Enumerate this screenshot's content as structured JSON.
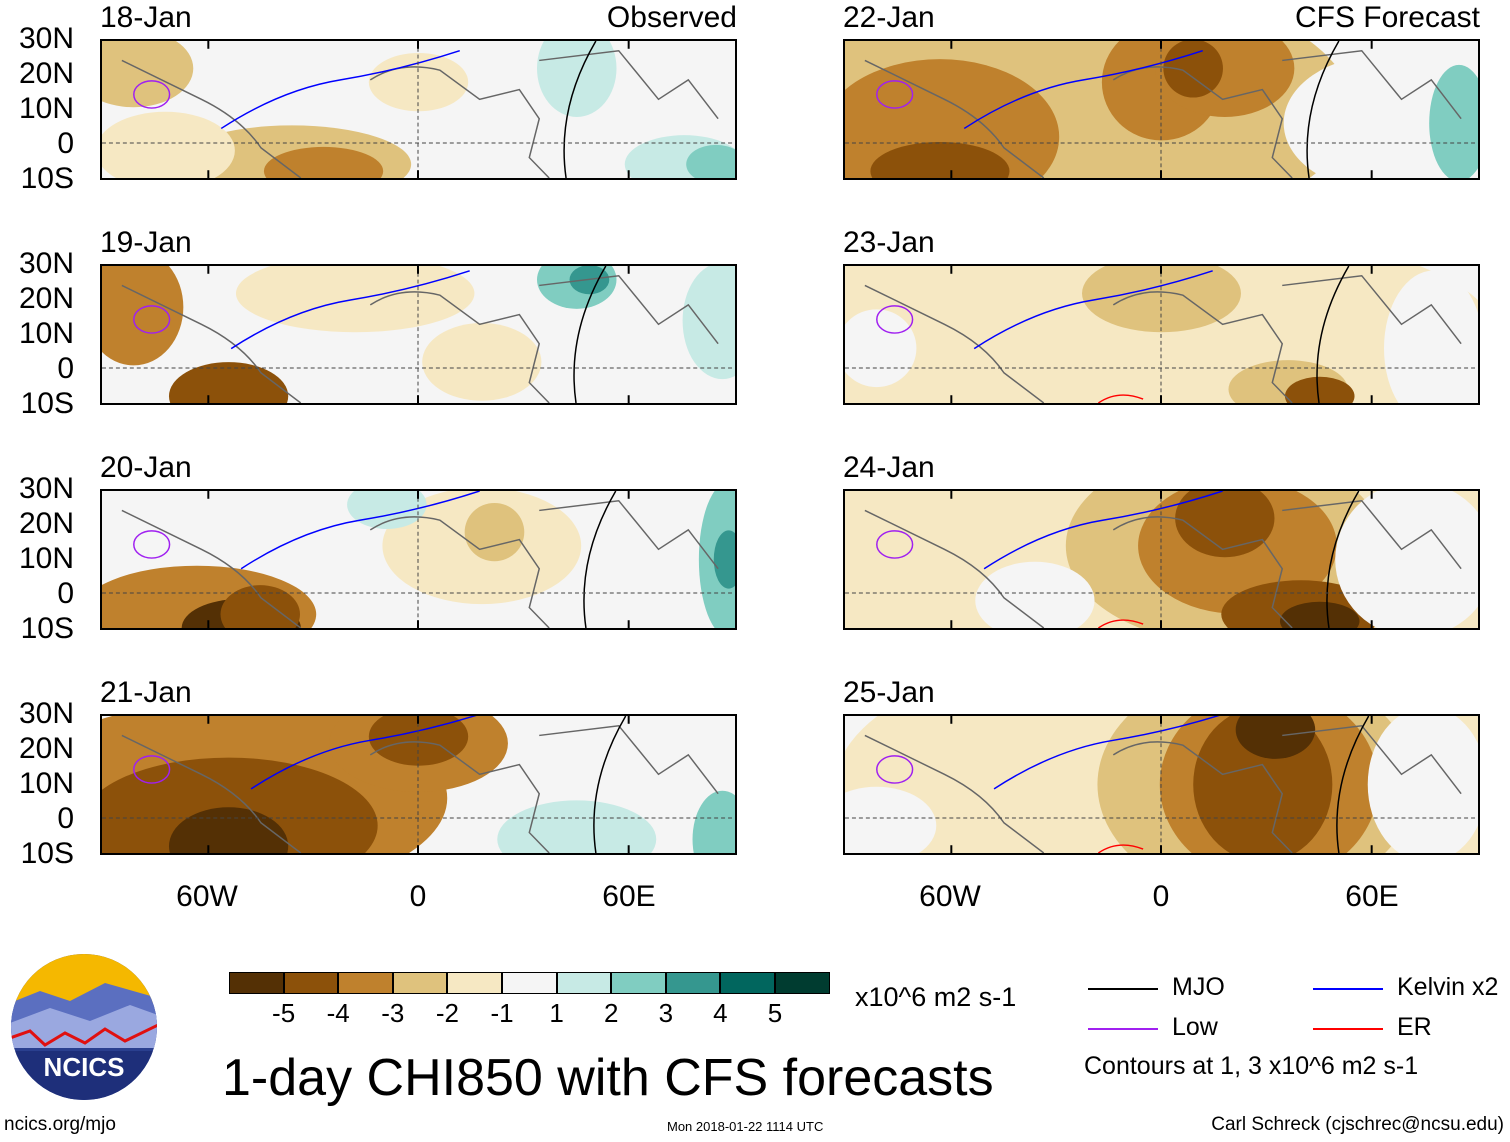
{
  "panels": {
    "left": [
      {
        "date": "18-Jan",
        "label": "Observed"
      },
      {
        "date": "19-Jan"
      },
      {
        "date": "20-Jan"
      },
      {
        "date": "21-Jan"
      }
    ],
    "right": [
      {
        "date": "22-Jan",
        "label": "CFS Forecast"
      },
      {
        "date": "23-Jan"
      },
      {
        "date": "24-Jan"
      },
      {
        "date": "25-Jan"
      }
    ]
  },
  "axes": {
    "lat_labels": [
      "30N",
      "20N",
      "10N",
      "0",
      "10S"
    ],
    "lon_labels": [
      "60W",
      "0",
      "60E"
    ]
  },
  "colorbar": {
    "colors": [
      "#543005",
      "#8c510a",
      "#bf812d",
      "#dfc27d",
      "#f6e8c3",
      "#f5f5f5",
      "#c7eae5",
      "#80cdc1",
      "#35978f",
      "#01665e",
      "#003c30"
    ],
    "tick_labels": [
      "-5",
      "-4",
      "-3",
      "-2",
      "-1",
      "1",
      "2",
      "3",
      "4",
      "5"
    ],
    "units": "x10^6 m2 s-1"
  },
  "legend": {
    "items": [
      {
        "label": "MJO",
        "color": "#000000"
      },
      {
        "label": "Kelvin x2",
        "color": "#0000ff"
      },
      {
        "label": "Low",
        "color": "#a020f0"
      },
      {
        "label": "ER",
        "color": "#ff0000"
      }
    ],
    "note": "Contours at 1, 3 x10^6 m2 s-1"
  },
  "title": "1-day CHI850 with CFS forecasts",
  "logo_text": "NCICS",
  "footer": {
    "url": "ncics.org/mjo",
    "timestamp": "Mon 2018-01-22 1114 UTC",
    "credit": "Carl Schreck (cjschrec@ncsu.edu)"
  }
}
